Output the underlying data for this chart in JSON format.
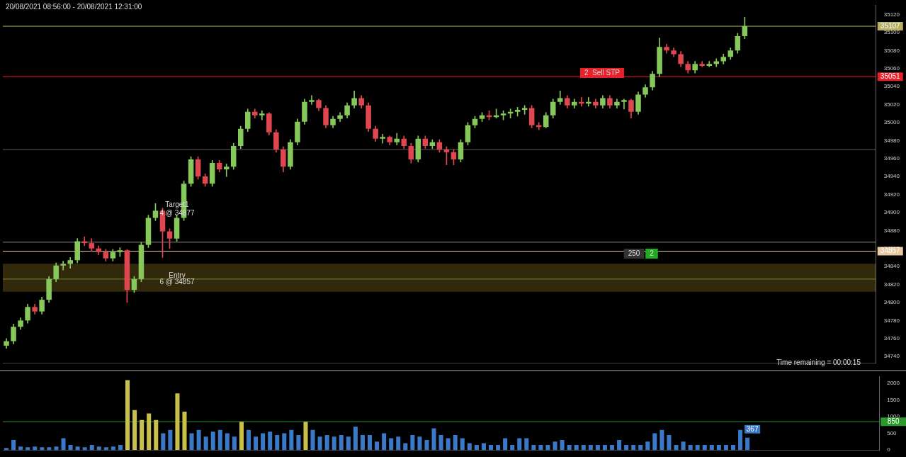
{
  "chart_data": [
    {
      "type": "candlestick",
      "categories": [
        null,
        null,
        null,
        null,
        null,
        null,
        null,
        null,
        null,
        null,
        null,
        null,
        null,
        null,
        null,
        null,
        null,
        null,
        null,
        null,
        null,
        null,
        null,
        null,
        null,
        null,
        null,
        null,
        null,
        null,
        null,
        null,
        null,
        null,
        null,
        null,
        null,
        null,
        null,
        null,
        null,
        null,
        null,
        null,
        null,
        null,
        null,
        null,
        null,
        null,
        null,
        null,
        null,
        null,
        null,
        null,
        null,
        null,
        null,
        null,
        null,
        null,
        null,
        null,
        null,
        null,
        null,
        null,
        null,
        null,
        null,
        null,
        null,
        null,
        null,
        null,
        null,
        null,
        null,
        null,
        null,
        null,
        null,
        null,
        null,
        null,
        null,
        null,
        null,
        null,
        null,
        null,
        null,
        null,
        null,
        null,
        null,
        null,
        null,
        null,
        null,
        null,
        null,
        null,
        null,
        null,
        null,
        null,
        null,
        null,
        null,
        null,
        null,
        null,
        null,
        null,
        null,
        null,
        null,
        null,
        null,
        null,
        null
      ],
      "ohlc": [
        [
          34752,
          34760,
          34749,
          34757
        ],
        [
          34757,
          34776,
          34754,
          34773
        ],
        [
          34773,
          34783,
          34770,
          34780
        ],
        [
          34780,
          34798,
          34777,
          34795
        ],
        [
          34795,
          34798,
          34787,
          34790
        ],
        [
          34790,
          34806,
          34787,
          34803
        ],
        [
          34803,
          34829,
          34800,
          34826
        ],
        [
          34826,
          34844,
          34823,
          34841
        ],
        [
          34841,
          34846,
          34836,
          34843
        ],
        [
          34843,
          34850,
          34838,
          34847
        ],
        [
          34847,
          34871,
          34844,
          34868
        ],
        [
          34868,
          34873,
          34863,
          34866
        ],
        [
          34866,
          34871,
          34857,
          34860
        ],
        [
          34860,
          34863,
          34853,
          34856
        ],
        [
          34856,
          34859,
          34846,
          34849
        ],
        [
          34849,
          34859,
          34846,
          34856
        ],
        [
          34856,
          34861,
          34851,
          34858
        ],
        [
          34858,
          34859,
          34800,
          34814
        ],
        [
          34814,
          34829,
          34811,
          34826
        ],
        [
          34826,
          34867,
          34823,
          34864
        ],
        [
          34864,
          34897,
          34861,
          34894
        ],
        [
          34894,
          34910,
          34891,
          34902
        ],
        [
          34902,
          34905,
          34850,
          34879
        ],
        [
          34879,
          34882,
          34860,
          34871
        ],
        [
          34871,
          34897,
          34868,
          34894
        ],
        [
          34894,
          34935,
          34891,
          34932
        ],
        [
          34932,
          34962,
          34929,
          34959
        ],
        [
          34959,
          34962,
          34937,
          34940
        ],
        [
          34940,
          34943,
          34929,
          34932
        ],
        [
          34932,
          34958,
          34929,
          34955
        ],
        [
          34955,
          34958,
          34945,
          34948
        ],
        [
          34948,
          34954,
          34940,
          34951
        ],
        [
          34951,
          34977,
          34948,
          34974
        ],
        [
          34974,
          34996,
          34971,
          34993
        ],
        [
          34993,
          35015,
          34990,
          35012
        ],
        [
          35012,
          35015,
          35005,
          35008
        ],
        [
          35008,
          35013,
          35003,
          35010
        ],
        [
          35010,
          35011,
          34986,
          34989
        ],
        [
          34989,
          34992,
          34967,
          34970
        ],
        [
          34970,
          34973,
          34945,
          34951
        ],
        [
          34951,
          34981,
          34948,
          34978
        ],
        [
          34978,
          35004,
          34975,
          35001
        ],
        [
          35001,
          35026,
          34998,
          35023
        ],
        [
          35023,
          35030,
          35020,
          35025
        ],
        [
          35025,
          35026,
          35013,
          35016
        ],
        [
          35016,
          35019,
          34994,
          34997
        ],
        [
          34997,
          35007,
          34994,
          35004
        ],
        [
          35004,
          35011,
          35001,
          35008
        ],
        [
          35008,
          35022,
          35005,
          35019
        ],
        [
          35019,
          35035,
          35016,
          35027
        ],
        [
          35027,
          35030,
          35016,
          35019
        ],
        [
          35019,
          35022,
          34990,
          34993
        ],
        [
          34993,
          34996,
          34979,
          34982
        ],
        [
          34982,
          34987,
          34977,
          34984
        ],
        [
          34984,
          34985,
          34975,
          34978
        ],
        [
          34978,
          34988,
          34975,
          34982
        ],
        [
          34982,
          34985,
          34971,
          34974
        ],
        [
          34974,
          34977,
          34955,
          34959
        ],
        [
          34959,
          34985,
          34956,
          34982
        ],
        [
          34982,
          34985,
          34971,
          34974
        ],
        [
          34974,
          34981,
          34971,
          34978
        ],
        [
          34978,
          34981,
          34967,
          34970
        ],
        [
          34970,
          34973,
          34953,
          34967
        ],
        [
          34967,
          34970,
          34953,
          34959
        ],
        [
          34959,
          34981,
          34956,
          34978
        ],
        [
          34978,
          35000,
          34975,
          34997
        ],
        [
          34997,
          35007,
          34994,
          35004
        ],
        [
          35004,
          35011,
          35001,
          35008
        ],
        [
          35008,
          35013,
          35003,
          35006
        ],
        [
          35006,
          35015,
          35005,
          35008
        ],
        [
          35008,
          35013,
          35003,
          35010
        ],
        [
          35010,
          35015,
          35005,
          35012
        ],
        [
          35012,
          35017,
          35007,
          35014
        ],
        [
          35014,
          35019,
          35009,
          35016
        ],
        [
          35016,
          35019,
          34994,
          34997
        ],
        [
          34997,
          35000,
          34992,
          34995
        ],
        [
          34995,
          35011,
          34994,
          35008
        ],
        [
          35008,
          35026,
          35005,
          35023
        ],
        [
          35023,
          35035,
          35020,
          35027
        ],
        [
          35027,
          35030,
          35016,
          35019
        ],
        [
          35019,
          35026,
          35016,
          35023
        ],
        [
          35023,
          35028,
          35018,
          35021
        ],
        [
          35021,
          35028,
          35018,
          35023
        ],
        [
          35023,
          35026,
          35016,
          35019
        ],
        [
          35019,
          35030,
          35016,
          35027
        ],
        [
          35027,
          35030,
          35016,
          35019
        ],
        [
          35019,
          35026,
          35016,
          35023
        ],
        [
          35023,
          35026,
          35015,
          35025
        ],
        [
          35025,
          35026,
          35005,
          35012
        ],
        [
          35012,
          35034,
          35009,
          35031
        ],
        [
          35031,
          35042,
          35028,
          35039
        ],
        [
          35039,
          35057,
          35036,
          35054
        ],
        [
          35054,
          35094,
          35051,
          35084
        ],
        [
          35084,
          35087,
          35077,
          35080
        ],
        [
          35080,
          35083,
          35073,
          35076
        ],
        [
          35076,
          35079,
          35062,
          35065
        ],
        [
          35065,
          35068,
          35055,
          35058
        ],
        [
          35058,
          35068,
          35055,
          35065
        ],
        [
          35065,
          35068,
          35062,
          35063
        ],
        [
          35063,
          35068,
          35062,
          35065
        ],
        [
          35065,
          35071,
          35062,
          35068
        ],
        [
          35068,
          35076,
          35065,
          35073
        ],
        [
          35073,
          35083,
          35070,
          35080
        ],
        [
          35080,
          35099,
          35077,
          35096
        ],
        [
          35096,
          35117,
          35093,
          35107
        ],
        null,
        null,
        null,
        null,
        null,
        null,
        null,
        null,
        null,
        null,
        null,
        null,
        null,
        null,
        null,
        null,
        null,
        null
      ],
      "colors": [
        "#86c95a",
        "#86c95a",
        "#86c95a",
        "#86c95a",
        "#e0464f",
        "#86c95a",
        "#86c95a",
        "#86c95a",
        "#86c95a",
        "#86c95a",
        "#86c95a",
        "#e0464f",
        "#e0464f",
        "#e0464f",
        "#e0464f",
        "#86c95a",
        "#86c95a",
        "#e0464f",
        "#86c95a",
        "#86c95a",
        "#86c95a",
        "#86c95a",
        "#e0464f",
        "#e0464f",
        "#86c95a",
        "#86c95a",
        "#86c95a",
        "#e0464f",
        "#e0464f",
        "#86c95a",
        "#e0464f",
        "#86c95a",
        "#86c95a",
        "#86c95a",
        "#86c95a",
        "#e0464f",
        "#86c95a",
        "#e0464f",
        "#e0464f",
        "#e0464f",
        "#86c95a",
        "#86c95a",
        "#86c95a",
        "#86c95a",
        "#e0464f",
        "#e0464f",
        "#86c95a",
        "#86c95a",
        "#86c95a",
        "#86c95a",
        "#e0464f",
        "#e0464f",
        "#e0464f",
        "#86c95a",
        "#e0464f",
        "#86c95a",
        "#e0464f",
        "#e0464f",
        "#86c95a",
        "#e0464f",
        "#86c95a",
        "#e0464f",
        "#e0464f",
        "#e0464f",
        "#86c95a",
        "#86c95a",
        "#86c95a",
        "#86c95a",
        "#e0464f",
        "#86c95a",
        "#86c95a",
        "#86c95a",
        "#86c95a",
        "#86c95a",
        "#e0464f",
        "#e0464f",
        "#86c95a",
        "#86c95a",
        "#86c95a",
        "#e0464f",
        "#86c95a",
        "#e0464f",
        "#86c95a",
        "#e0464f",
        "#86c95a",
        "#e0464f",
        "#86c95a",
        "#86c95a",
        "#e0464f",
        "#86c95a",
        "#86c95a",
        "#86c95a",
        "#86c95a",
        "#e0464f",
        "#e0464f",
        "#e0464f",
        "#e0464f",
        "#86c95a",
        "#e0464f",
        "#86c95a",
        "#86c95a",
        "#86c95a",
        "#86c95a",
        "#86c95a",
        "#86c95a",
        null,
        null,
        null,
        null,
        null,
        null,
        null,
        null,
        null,
        null,
        null,
        null,
        null,
        null,
        null,
        null,
        null,
        null
      ],
      "ylim": [
        34733,
        35130
      ],
      "yticks": [
        34740,
        34760,
        34780,
        34800,
        34820,
        34840,
        34860,
        34880,
        34900,
        34920,
        34940,
        34960,
        34980,
        35000,
        35020,
        35040,
        35060,
        35080,
        35100,
        35120
      ],
      "tick_labels": "y",
      "ref_lines": [
        {
          "axis": "y",
          "value": 35107,
          "label": "35107",
          "color": "#b8b060"
        },
        {
          "axis": "y",
          "value": 35051,
          "label": "35051",
          "color": "#e8202a"
        },
        {
          "axis": "y",
          "value": 34857,
          "label": "34857",
          "color": "#e8c9a0"
        },
        {
          "axis": "y",
          "value": 34867,
          "color": "#8a8a8a"
        },
        {
          "axis": "y",
          "value": 34970,
          "color": "#5a5a5a"
        },
        {
          "axis": "y",
          "value": 34826,
          "color": "#6a8a30"
        }
      ],
      "bands": [
        {
          "axis": "y",
          "from": 34812,
          "to": 34843,
          "color": "#c8a030"
        }
      ],
      "annotations": [
        "20/08/2021 08:56:00 - 20/08/2021 12:31:00",
        "Target1",
        "4 @ 34877",
        "Entry",
        "6 @ 34857",
        "2  Sell STP",
        "250",
        "2",
        "Time remaining = 00:00:15"
      ]
    },
    {
      "type": "bar",
      "categories": [
        null,
        null,
        null,
        null,
        null,
        null,
        null,
        null,
        null,
        null,
        null,
        null,
        null,
        null,
        null,
        null,
        null,
        null,
        null,
        null,
        null,
        null,
        null,
        null,
        null,
        null,
        null,
        null,
        null,
        null,
        null,
        null,
        null,
        null,
        null,
        null,
        null,
        null,
        null,
        null,
        null,
        null,
        null,
        null,
        null,
        null,
        null,
        null,
        null,
        null,
        null,
        null,
        null,
        null,
        null,
        null,
        null,
        null,
        null,
        null,
        null,
        null,
        null,
        null,
        null,
        null,
        null,
        null,
        null,
        null,
        null,
        null,
        null,
        null,
        null,
        null,
        null,
        null,
        null,
        null,
        null,
        null,
        null,
        null,
        null,
        null,
        null,
        null,
        null,
        null,
        null,
        null,
        null,
        null,
        null,
        null,
        null,
        null,
        null,
        null,
        null,
        null,
        null,
        null,
        null,
        null,
        null,
        null,
        null,
        null,
        null,
        null,
        null,
        null,
        null,
        null,
        null,
        null,
        null,
        null,
        null,
        null,
        null
      ],
      "series": [
        {
          "color": "#3a78c8",
          "values": [
            60,
            300,
            100,
            80,
            100,
            80,
            80,
            100,
            350,
            150,
            100,
            80,
            150,
            100,
            80,
            100,
            150,
            null,
            null,
            null,
            null,
            null,
            500,
            600,
            null,
            null,
            500,
            600,
            400,
            550,
            600,
            500,
            400,
            null,
            600,
            400,
            500,
            550,
            450,
            500,
            600,
            450,
            null,
            600,
            400,
            450,
            400,
            450,
            400,
            700,
            450,
            450,
            250,
            500,
            350,
            400,
            200,
            450,
            400,
            300,
            650,
            450,
            350,
            450,
            350,
            200,
            150,
            200,
            150,
            150,
            350,
            150,
            350,
            350,
            150,
            150,
            150,
            250,
            300,
            150,
            150,
            150,
            150,
            150,
            150,
            150,
            300,
            150,
            150,
            150,
            250,
            500,
            600,
            450,
            150,
            250,
            150,
            150,
            150,
            150,
            150,
            150,
            150,
            600,
            367,
            null,
            null,
            null,
            null,
            null,
            null,
            null,
            null,
            null,
            null,
            null,
            null,
            null,
            null,
            null,
            null,
            null,
            null
          ],
          "value_labels": [
            null,
            null,
            null,
            null,
            null,
            null,
            null,
            null,
            null,
            null,
            null,
            null,
            null,
            null,
            null,
            null,
            null,
            null,
            null,
            null,
            null,
            null,
            null,
            null,
            null,
            null,
            null,
            null,
            null,
            null,
            null,
            null,
            null,
            null,
            null,
            null,
            null,
            null,
            null,
            null,
            null,
            null,
            null,
            null,
            null,
            null,
            null,
            null,
            null,
            null,
            null,
            null,
            null,
            null,
            null,
            null,
            null,
            null,
            null,
            null,
            null,
            null,
            null,
            null,
            null,
            null,
            null,
            null,
            null,
            null,
            null,
            null,
            null,
            null,
            null,
            null,
            null,
            null,
            null,
            null,
            null,
            null,
            null,
            null,
            null,
            null,
            null,
            null,
            null,
            null,
            null,
            null,
            null,
            null,
            null,
            null,
            null,
            null,
            null,
            null,
            null,
            null,
            null,
            null,
            "367",
            null,
            null,
            null,
            null,
            null,
            null,
            null,
            null,
            null,
            null,
            null,
            null,
            null,
            null,
            null,
            null,
            null,
            null
          ]
        },
        {
          "color": "#c9c04a",
          "values": [
            null,
            null,
            null,
            null,
            null,
            null,
            null,
            null,
            null,
            null,
            null,
            null,
            null,
            null,
            null,
            null,
            null,
            2100,
            1200,
            900,
            1100,
            900,
            null,
            null,
            1700,
            1150,
            null,
            null,
            null,
            null,
            null,
            null,
            null,
            850,
            null,
            null,
            null,
            null,
            null,
            null,
            null,
            null,
            850,
            null,
            null,
            null,
            null,
            null,
            null,
            null,
            null,
            null,
            null,
            null,
            null,
            null,
            null,
            null,
            null,
            null,
            null,
            null,
            null,
            null,
            null,
            null,
            null,
            null,
            null,
            null,
            null,
            null,
            null,
            null,
            null,
            null,
            null,
            null,
            null,
            null,
            null,
            null,
            null,
            null,
            null,
            null,
            null,
            null,
            null,
            null,
            null,
            null,
            null,
            null,
            null,
            null,
            null,
            null,
            null,
            null,
            null,
            null,
            null,
            null,
            null,
            null,
            null,
            null,
            null,
            null,
            null,
            null,
            null,
            null,
            null,
            null,
            null,
            null,
            null,
            null,
            null,
            null,
            null
          ]
        }
      ],
      "ylim": [
        0,
        2200
      ],
      "yticks": [
        0,
        500,
        1000,
        1500,
        2000
      ],
      "tick_labels": "y",
      "ref_lines": [
        {
          "axis": "y",
          "value": 850,
          "label": "850",
          "color": "#2a9a2a"
        }
      ]
    }
  ]
}
